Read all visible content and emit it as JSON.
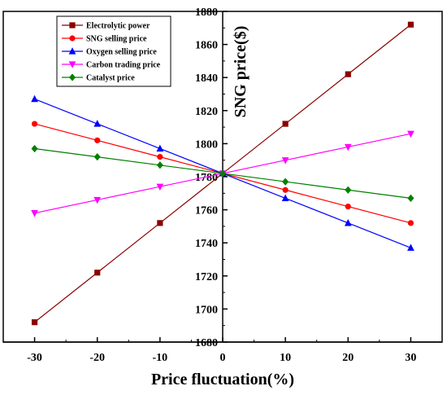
{
  "chart_data": {
    "type": "line",
    "xlabel": "Price fluctuation(%)",
    "ylabel": "SNG price($)",
    "x": [
      -30,
      -20,
      -10,
      0,
      10,
      20,
      30
    ],
    "xlim": [
      -35,
      35
    ],
    "ylim": [
      1680,
      1880
    ],
    "xticks": [
      -30,
      -20,
      -10,
      0,
      10,
      20,
      30
    ],
    "yticks": [
      1680,
      1700,
      1720,
      1740,
      1760,
      1780,
      1800,
      1820,
      1840,
      1860,
      1880
    ],
    "grid": false,
    "legend_position": "top-left",
    "series": [
      {
        "name": "Electrolytic power",
        "color": "#8b0000",
        "marker": "square",
        "values": [
          1692,
          1722,
          1752,
          1782,
          1812,
          1842,
          1872
        ]
      },
      {
        "name": "SNG selling price",
        "color": "#ff0000",
        "marker": "circle",
        "values": [
          1812,
          1802,
          1792,
          1782,
          1772,
          1762,
          1752
        ]
      },
      {
        "name": "Oxygen selling price",
        "color": "#0000ff",
        "marker": "triangle",
        "values": [
          1827,
          1812,
          1797,
          1782,
          1767,
          1752,
          1737
        ]
      },
      {
        "name": "Carbon trading price",
        "color": "#ff00ff",
        "marker": "triangle-down",
        "values": [
          1758,
          1766,
          1774,
          1782,
          1790,
          1798,
          1806
        ]
      },
      {
        "name": "Catalyst price",
        "color": "#008000",
        "marker": "diamond",
        "values": [
          1797,
          1792,
          1787,
          1782,
          1777,
          1772,
          1767
        ]
      }
    ]
  }
}
